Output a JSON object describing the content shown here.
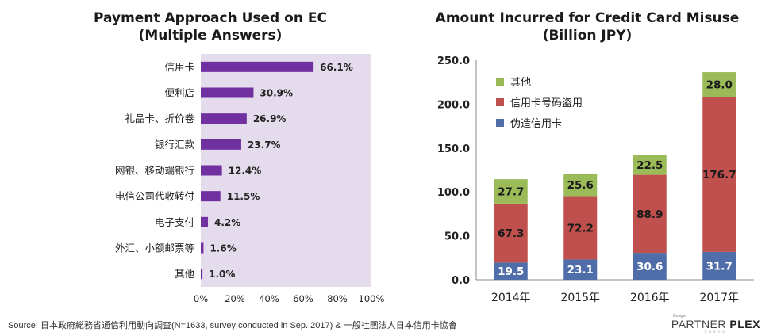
{
  "chart_data": [
    {
      "type": "bar",
      "orientation": "horizontal",
      "title_line1": "Payment Approach Used on EC",
      "title_line2": "(Multiple Answers)",
      "categories": [
        "信用卡",
        "便利店",
        "礼品卡、折价卷",
        "银行汇款",
        "网银、移动端银行",
        "电信公司代收转付",
        "电子支付",
        "外汇、小额邮票等",
        "其他"
      ],
      "values": [
        66.1,
        30.9,
        26.9,
        23.7,
        12.4,
        11.5,
        4.2,
        1.6,
        1.0
      ],
      "value_labels": [
        "66.1%",
        "30.9%",
        "26.9%",
        "23.7%",
        "12.4%",
        "11.5%",
        "4.2%",
        "1.6%",
        "1.0%"
      ],
      "xlim": [
        0,
        100
      ],
      "x_ticks": [
        0,
        20,
        40,
        60,
        80,
        100
      ],
      "x_tick_labels": [
        "0%",
        "20%",
        "40%",
        "60%",
        "80%",
        "100%"
      ],
      "bar_color": "#7030a0",
      "plot_bg": "#e4dcec"
    },
    {
      "type": "bar",
      "stacked": true,
      "title_line1": "Amount Incurred for Credit Card Misuse",
      "title_line2": "(Billion JPY)",
      "categories": [
        "2014年",
        "2015年",
        "2016年",
        "2017年"
      ],
      "series": [
        {
          "name": "伪造信用卡",
          "values": [
            19.5,
            23.1,
            30.6,
            31.7
          ],
          "labels": [
            "19.5",
            "23.1",
            "30.6",
            "31.7"
          ],
          "color": "#4f6da8"
        },
        {
          "name": "信用卡号码盗用",
          "values": [
            67.3,
            72.2,
            88.9,
            176.7
          ],
          "labels": [
            "67.3",
            "72.2",
            "88.9",
            "176.7"
          ],
          "color": "#c0504d"
        },
        {
          "name": "其他",
          "values": [
            27.7,
            25.6,
            22.5,
            28.0
          ],
          "labels": [
            "27.7",
            "25.6",
            "22.5",
            "28.0"
          ],
          "color": "#9bbb59"
        }
      ],
      "legend_order": [
        "其他",
        "信用卡号码盗用",
        "伪造信用卡"
      ],
      "ylim": [
        0,
        250
      ],
      "y_ticks": [
        0,
        50,
        100,
        150,
        200,
        250
      ],
      "y_tick_labels": [
        "0.0",
        "50.0",
        "100.0",
        "150.0",
        "200.0",
        "250.0"
      ],
      "legend_position": "top-left"
    }
  ],
  "footer": {
    "source": "Source: 日本政府総務省通信利用動向調査(N=1633, survey conducted in Sep. 2017) & 一般社團法人日本信用卡協會",
    "logo_small": "Google",
    "logo_main": "PARTNER ",
    "logo_bold": "PLEX",
    "logo_sub": "TOKYO"
  }
}
